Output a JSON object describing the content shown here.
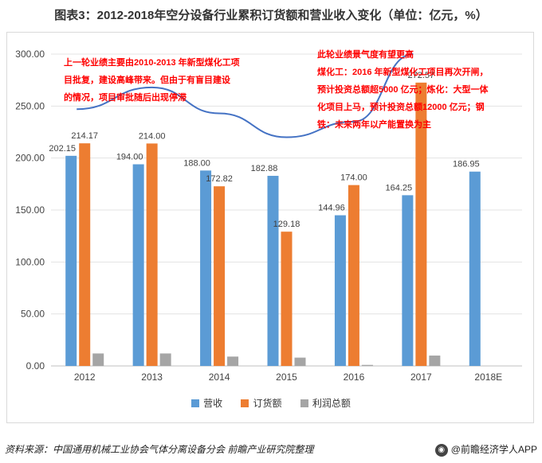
{
  "title": "图表3：2012-2018年空分设备行业累积订货额和营业收入变化（单位：亿元，%）",
  "chart_data": {
    "type": "bar",
    "categories": [
      "2012",
      "2013",
      "2014",
      "2015",
      "2016",
      "2017",
      "2018E"
    ],
    "ylim": [
      0,
      300
    ],
    "yticks": [
      "0.00",
      "50.00",
      "100.00",
      "150.00",
      "200.00",
      "250.00",
      "300.00"
    ],
    "grid": true,
    "legend_position": "bottom",
    "series": [
      {
        "name": "营收",
        "color": "#5b9bd5",
        "values": [
          202.15,
          194.0,
          188.0,
          182.88,
          144.96,
          164.25,
          186.95
        ],
        "labels": [
          "202.15",
          "194.00",
          "188.00",
          "182.88",
          "144.96",
          "164.25",
          "186.95"
        ]
      },
      {
        "name": "订货额",
        "color": "#ed7d31",
        "values": [
          214.17,
          214.0,
          172.82,
          129.18,
          174.0,
          272.57,
          null
        ],
        "labels": [
          "214.17",
          "214.00",
          "172.82",
          "129.18",
          "174.00",
          "272.57",
          ""
        ]
      },
      {
        "name": "利润总额",
        "color": "#a5a5a5",
        "values": [
          12,
          12,
          9,
          8,
          1,
          10,
          null
        ],
        "labels": [
          "",
          "",
          "",
          "",
          "",
          "",
          ""
        ]
      }
    ],
    "trend_line_color": "#4472c4"
  },
  "annotations": {
    "left": [
      "上一轮业绩主要由2010-2013 年新型煤化工项",
      "目批复，建设高峰带来。但由于有盲目建设",
      "的情况，项目审批随后出现停滞"
    ],
    "right": [
      "此轮业绩景气度有望更高",
      "煤化工：2016 年新型煤化工项目再次开闸，",
      "预计投资总额超5000 亿元；炼化：大型一体",
      "化项目上马，预计投资总额12000 亿元；钢",
      "铁：未来两年以产能置换为主"
    ]
  },
  "footer": {
    "source": "资料来源：中国通用机械工业协会气体分离设备分会 前瞻产业研究院整理",
    "brand": "@前瞻经济学人APP"
  }
}
